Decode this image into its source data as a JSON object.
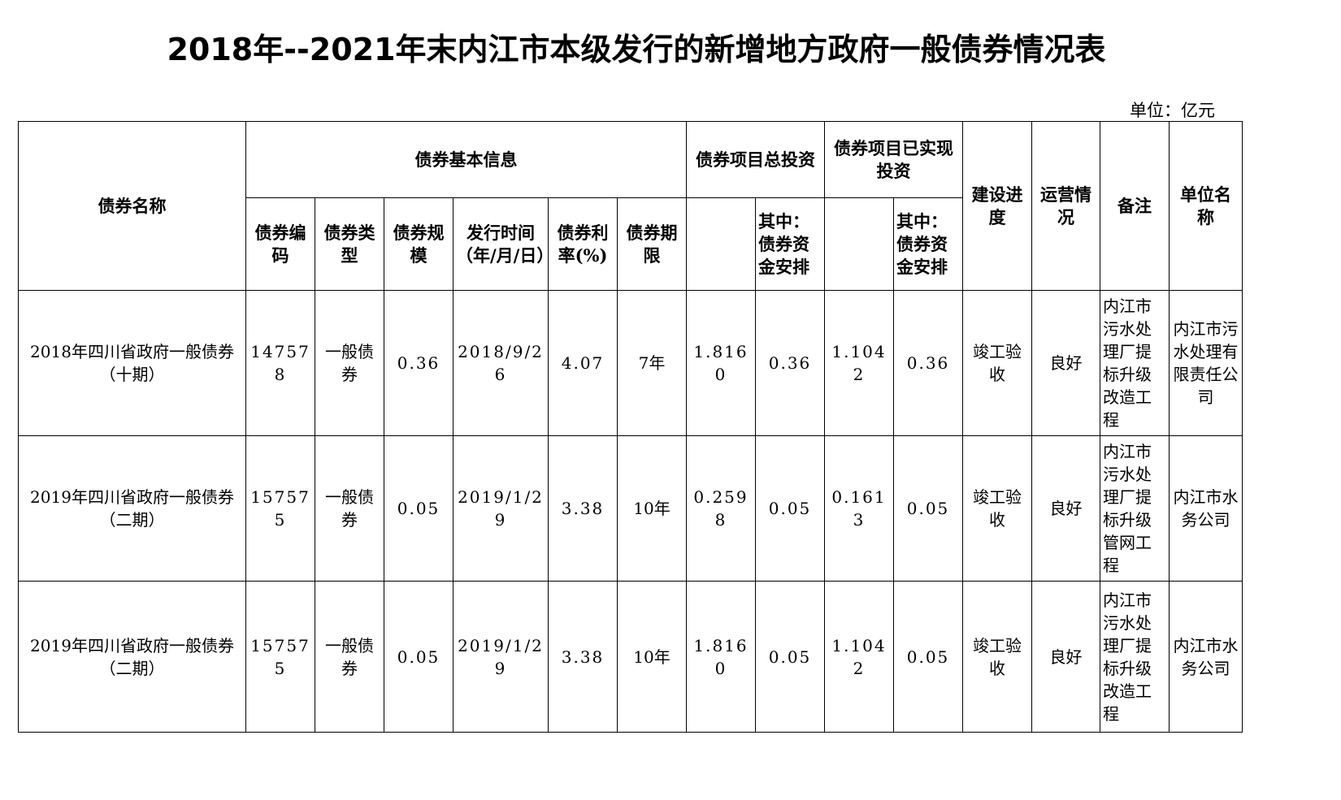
{
  "title": "2018年--2021年末内江市本级发行的新增地方政府一般债券情况表",
  "unit": "单位：亿元",
  "headers": {
    "name": "债券名称",
    "basic": "债券基本信息",
    "total": "债券项目总投资",
    "realized": "债券项目已实现投资",
    "progress": "建设进度",
    "operation": "运营情况",
    "remark": "备注",
    "company": "单位名称",
    "code": "债券编码",
    "type": "债券类型",
    "scale": "债券规模",
    "date": "发行时间（年/月/日）",
    "rate": "债券利率(%)",
    "term": "债券期限",
    "of_which1": "其中：债券资金安排",
    "of_which2": "其中：债券资金安排"
  },
  "rows": [
    {
      "name": "2018年四川省政府一般债券（十期）",
      "code": "147578",
      "type": "一般债券",
      "scale": "0.36",
      "date": "2018/9/26",
      "rate": "4.07",
      "term": "7年",
      "total": "1.8160",
      "total_bond": "0.36",
      "realized": "1.1042",
      "realized_bond": "0.36",
      "progress": "竣工验收",
      "operation": "良好",
      "remark": "内江市污水处理厂提标升级改造工程",
      "company": "内江市污水处理有限责任公司"
    },
    {
      "name": "2019年四川省政府一般债券（二期）",
      "code": "157575",
      "type": "一般债券",
      "scale": "0.05",
      "date": "2019/1/29",
      "rate": "3.38",
      "term": "10年",
      "total": "0.2598",
      "total_bond": "0.05",
      "realized": "0.1613",
      "realized_bond": "0.05",
      "progress": "竣工验收",
      "operation": "良好",
      "remark": "内江市污水处理厂提标升级管网工程",
      "company": "内江市水务公司"
    },
    {
      "name": "2019年四川省政府一般债券（二期）",
      "code": "157575",
      "type": "一般债券",
      "scale": "0.05",
      "date": "2019/1/29",
      "rate": "3.38",
      "term": "10年",
      "total": "1.8160",
      "total_bond": "0.05",
      "realized": "1.1042",
      "realized_bond": "0.05",
      "progress": "竣工验收",
      "operation": "良好",
      "remark": "内江市污水处理厂提标升级改造工程",
      "company": "内江市水务公司"
    }
  ]
}
